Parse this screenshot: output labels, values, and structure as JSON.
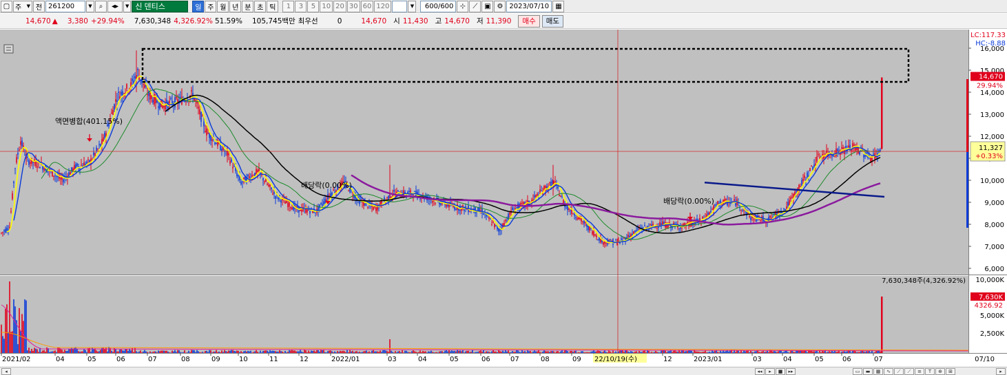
{
  "toolbar": {
    "period_select": "주",
    "prev_label": "전",
    "code": "261200",
    "stock_name": "덴티스",
    "badge_new": "신",
    "periods": [
      "일",
      "주",
      "월",
      "년",
      "분",
      "초",
      "틱"
    ],
    "active_period": "일",
    "minute_options": [
      "1",
      "3",
      "5",
      "10",
      "20",
      "30",
      "60",
      "120"
    ],
    "count": "600",
    "count_total": "/600",
    "date": "2023/07/10"
  },
  "quote": {
    "price": "14,670",
    "change": "3,380",
    "change_pct": "+29.94%",
    "volume": "7,630,348",
    "volume_pct": "4,326.92%",
    "turnover_pct": "51.59%",
    "amount": "105,745백만",
    "best_label": "최우선",
    "best_value": "0",
    "best_price": "14,670",
    "open_label": "시",
    "open": "11,430",
    "high_label": "고",
    "high": "14,670",
    "low_label": "저",
    "low": "11,390",
    "buy_label": "매수",
    "sell_label": "매도"
  },
  "chart": {
    "lc_label": "LC:117.33",
    "hc_label": "HC:-8.88",
    "price_ticks": [
      "16,000",
      "15,000",
      "14,000",
      "13,000",
      "12,000",
      "11,000",
      "10,000",
      "9,000",
      "8,000",
      "7,000",
      "6,000"
    ],
    "current_price": "14,670",
    "current_pct": "29.94%",
    "cross_price": "11,327",
    "cross_pct": "+0.33%",
    "annotations": [
      "액면병합(401.15%)",
      "배당락(0.00%)",
      "배당락(0.00%)"
    ],
    "volume_header": "7,630,348주(4,326.92%)",
    "volume_ticks": [
      "10,000K",
      "5,000K",
      "2,500K"
    ],
    "volume_current": "7,630K",
    "volume_pct": "4326.92",
    "x_labels": [
      "2021/02",
      "04",
      "05",
      "06",
      "07",
      "08",
      "09",
      "10",
      "11",
      "12",
      "2022/01",
      "03",
      "04",
      "05",
      "06",
      "07",
      "08",
      "09",
      "22/10/19(수)",
      "12",
      "2023/01",
      "03",
      "04",
      "05",
      "06",
      "07"
    ],
    "x_right": "07/10"
  },
  "colors": {
    "bg": "#c0c0c0",
    "up": "#e0001b",
    "down": "#0a3ad8",
    "ma5": "#ffff00",
    "ma20": "#1b8a2a",
    "ma60": "#000000",
    "ma120": "#8b1a9e",
    "trend": "#0a1a8a"
  }
}
